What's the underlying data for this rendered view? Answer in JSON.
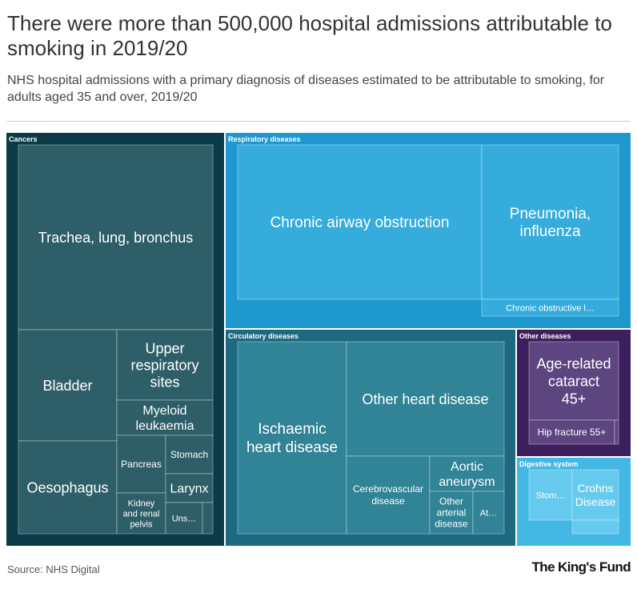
{
  "title": "There were more than 500,000 hospital admissions attributable to smoking in 2019/20",
  "subtitle": "NHS hospital admissions with a primary diagnosis of diseases estimated to be attributable to smoking, for adults aged 35 and over, 2019/20",
  "source": "Source: NHS Digital",
  "logo": "The King's Fund",
  "chart_data": {
    "type": "treemap",
    "groups": [
      {
        "name": "Cancers",
        "color": "#0c3b47",
        "tile_color": "#2e5f69",
        "items": [
          {
            "label": "Trachea, lung, bronchus"
          },
          {
            "label": "Bladder"
          },
          {
            "label": "Upper respiratory sites"
          },
          {
            "label": "Myeloid leukaemia"
          },
          {
            "label": "Oesophagus"
          },
          {
            "label": "Pancreas"
          },
          {
            "label": "Stomach"
          },
          {
            "label": "Larynx"
          },
          {
            "label": "Kidney and renal pelvis"
          },
          {
            "label": "Uns…"
          },
          {
            "label": ""
          }
        ]
      },
      {
        "name": "Respiratory diseases",
        "color": "#1f98cf",
        "tile_color": "#35acdc",
        "items": [
          {
            "label": "Chronic airway obstruction"
          },
          {
            "label": "Pneumonia, influenza"
          },
          {
            "label": "Chronic obstructive l…"
          }
        ]
      },
      {
        "name": "Circulatory diseases",
        "color": "#1d6a80",
        "tile_color": "#318396",
        "items": [
          {
            "label": "Ischaemic heart disease"
          },
          {
            "label": "Other heart disease"
          },
          {
            "label": "Cerebrovascular disease"
          },
          {
            "label": "Aortic aneurysm"
          },
          {
            "label": "Other arterial disease"
          },
          {
            "label": "At…"
          }
        ]
      },
      {
        "name": "Other diseases",
        "color": "#3e1f5e",
        "tile_color": "#5d4580",
        "items": [
          {
            "label": "Age-related cataract 45+"
          },
          {
            "label": "Hip fracture 55+"
          },
          {
            "label": ""
          }
        ]
      },
      {
        "name": "Digestive system",
        "color": "#44b8e5",
        "tile_color": "#66caef",
        "items": [
          {
            "label": "Stom…"
          },
          {
            "label": "Crohns Disease"
          },
          {
            "label": ""
          }
        ]
      }
    ]
  }
}
